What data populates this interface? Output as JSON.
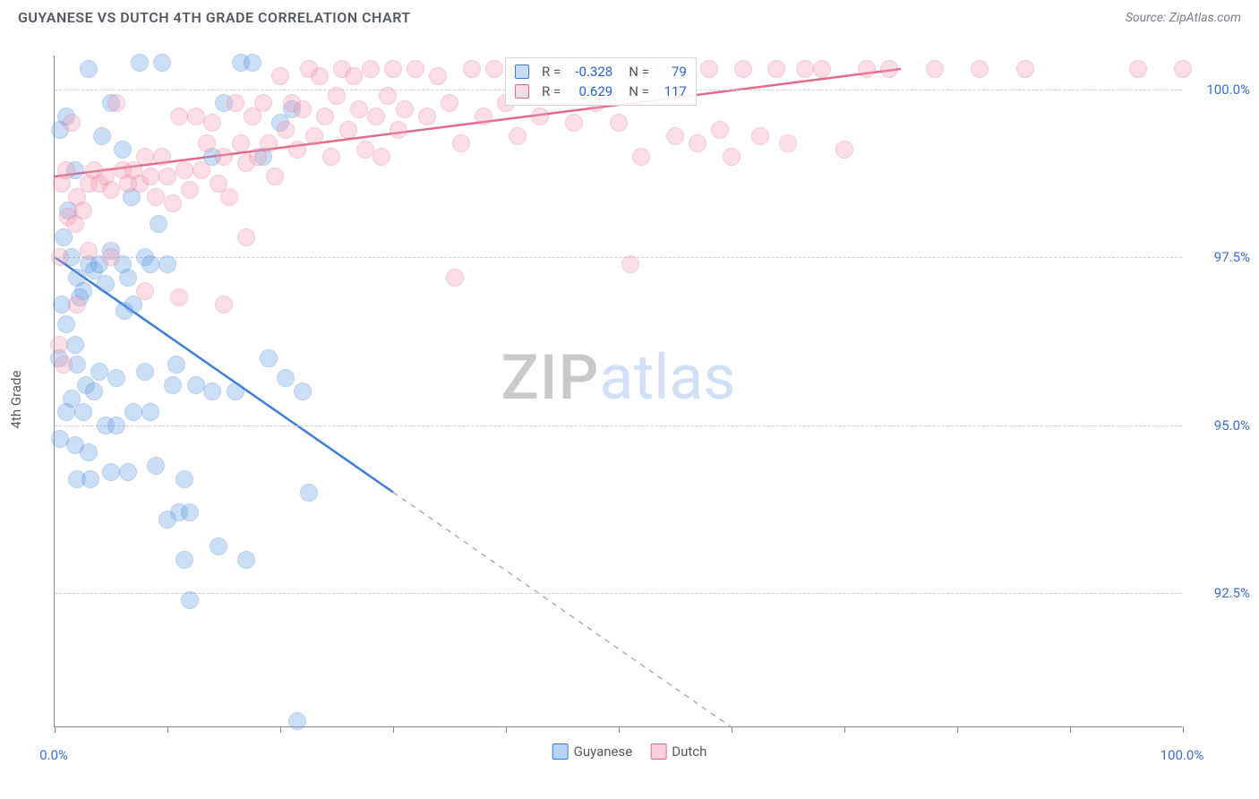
{
  "header": {
    "title": "GUYANESE VS DUTCH 4TH GRADE CORRELATION CHART",
    "source": "Source: ZipAtlas.com"
  },
  "watermark": {
    "part1": "ZIP",
    "part2": "atlas"
  },
  "yaxis": {
    "label": "4th Grade"
  },
  "chart": {
    "type": "scatter",
    "background_color": "#ffffff",
    "grid_color": "#cfcfcf",
    "xlim": [
      0,
      100
    ],
    "ylim": [
      90.5,
      100.5
    ],
    "x_ticks": [
      0,
      10,
      20,
      30,
      40,
      50,
      60,
      70,
      80,
      90,
      100
    ],
    "x_tick_labels_shown": {
      "0": "0.0%",
      "100": "100.0%"
    },
    "y_gridlines": [
      92.5,
      95.0,
      97.5,
      100.0
    ],
    "y_tick_labels": {
      "92.5": "92.5%",
      "95.0": "95.0%",
      "97.5": "97.5%",
      "100.0": "100.0%"
    },
    "marker_radius": 10,
    "marker_opacity": 0.35,
    "marker_border_opacity": 0.85,
    "line_width": 2.5,
    "series": [
      {
        "name": "Guyanese",
        "color_fill": "#6aa4e8",
        "color_stroke": "#3b7dd8",
        "R": "-0.328",
        "N": "79",
        "trend": {
          "x1": 0,
          "y1": 97.5,
          "x2": 30,
          "y2": 94.0,
          "dash_to_x": 60,
          "dash_to_y": 90.5
        },
        "points": [
          [
            0.5,
            99.4
          ],
          [
            1.0,
            99.6
          ],
          [
            1.2,
            98.2
          ],
          [
            1.8,
            98.8
          ],
          [
            0.8,
            97.8
          ],
          [
            1.5,
            97.5
          ],
          [
            2.0,
            97.2
          ],
          [
            2.5,
            97.0
          ],
          [
            0.6,
            96.8
          ],
          [
            1.0,
            96.5
          ],
          [
            1.8,
            96.2
          ],
          [
            0.4,
            96.0
          ],
          [
            2.2,
            96.9
          ],
          [
            3.0,
            97.4
          ],
          [
            3.5,
            97.3
          ],
          [
            4.0,
            97.4
          ],
          [
            4.5,
            97.1
          ],
          [
            5.0,
            97.6
          ],
          [
            6.0,
            97.4
          ],
          [
            6.5,
            97.2
          ],
          [
            7.5,
            100.4
          ],
          [
            8.0,
            97.5
          ],
          [
            9.5,
            100.4
          ],
          [
            3.0,
            100.3
          ],
          [
            4.2,
            99.3
          ],
          [
            5.0,
            99.8
          ],
          [
            6.0,
            99.1
          ],
          [
            6.8,
            98.4
          ],
          [
            8.5,
            97.4
          ],
          [
            2.0,
            95.9
          ],
          [
            2.8,
            95.6
          ],
          [
            3.5,
            95.5
          ],
          [
            4.0,
            95.8
          ],
          [
            5.5,
            95.7
          ],
          [
            6.2,
            96.7
          ],
          [
            7.0,
            96.8
          ],
          [
            8.0,
            95.8
          ],
          [
            9.2,
            98.0
          ],
          [
            10.0,
            97.4
          ],
          [
            10.8,
            95.9
          ],
          [
            1.0,
            95.2
          ],
          [
            1.5,
            95.4
          ],
          [
            2.5,
            95.2
          ],
          [
            0.5,
            94.8
          ],
          [
            1.8,
            94.7
          ],
          [
            3.0,
            94.6
          ],
          [
            4.5,
            95.0
          ],
          [
            5.5,
            95.0
          ],
          [
            7.0,
            95.2
          ],
          [
            8.5,
            95.2
          ],
          [
            2.0,
            94.2
          ],
          [
            3.2,
            94.2
          ],
          [
            5.0,
            94.3
          ],
          [
            6.5,
            94.3
          ],
          [
            9.0,
            94.4
          ],
          [
            10.5,
            95.6
          ],
          [
            11.5,
            94.2
          ],
          [
            12.5,
            95.6
          ],
          [
            14.0,
            95.5
          ],
          [
            16.0,
            95.5
          ],
          [
            10.0,
            93.6
          ],
          [
            11.0,
            93.7
          ],
          [
            12.0,
            93.7
          ],
          [
            14.0,
            99.0
          ],
          [
            15.0,
            99.8
          ],
          [
            16.5,
            100.4
          ],
          [
            17.5,
            100.4
          ],
          [
            18.5,
            99.0
          ],
          [
            20.0,
            99.5
          ],
          [
            19.0,
            96.0
          ],
          [
            20.5,
            95.7
          ],
          [
            21.0,
            99.7
          ],
          [
            22.0,
            95.5
          ],
          [
            22.5,
            94.0
          ],
          [
            12.0,
            92.4
          ],
          [
            11.5,
            93.0
          ],
          [
            14.5,
            93.2
          ],
          [
            17.0,
            93.0
          ],
          [
            21.5,
            90.6
          ]
        ]
      },
      {
        "name": "Dutch",
        "color_fill": "#f29fb6",
        "color_stroke": "#e46a8c",
        "R": "0.629",
        "N": "117",
        "trend": {
          "x1": 0,
          "y1": 98.7,
          "x2": 75,
          "y2": 100.3
        },
        "points": [
          [
            0.5,
            97.5
          ],
          [
            0.8,
            95.9
          ],
          [
            0.4,
            96.2
          ],
          [
            1.2,
            98.1
          ],
          [
            1.8,
            98.0
          ],
          [
            2.0,
            98.4
          ],
          [
            2.5,
            98.2
          ],
          [
            0.6,
            98.6
          ],
          [
            1.0,
            98.8
          ],
          [
            1.5,
            99.5
          ],
          [
            3.0,
            98.6
          ],
          [
            3.5,
            98.8
          ],
          [
            4.0,
            98.6
          ],
          [
            4.5,
            98.7
          ],
          [
            5.0,
            98.5
          ],
          [
            5.5,
            99.8
          ],
          [
            6.0,
            98.8
          ],
          [
            6.5,
            98.6
          ],
          [
            7.0,
            98.8
          ],
          [
            7.5,
            98.6
          ],
          [
            8.0,
            99.0
          ],
          [
            8.5,
            98.7
          ],
          [
            9.0,
            98.4
          ],
          [
            9.5,
            99.0
          ],
          [
            10.0,
            98.7
          ],
          [
            10.5,
            98.3
          ],
          [
            11.0,
            99.6
          ],
          [
            11.5,
            98.8
          ],
          [
            12.0,
            98.5
          ],
          [
            12.5,
            99.6
          ],
          [
            13.0,
            98.8
          ],
          [
            13.5,
            99.2
          ],
          [
            14.0,
            99.5
          ],
          [
            14.5,
            98.6
          ],
          [
            15.0,
            99.0
          ],
          [
            15.5,
            98.4
          ],
          [
            16.0,
            99.8
          ],
          [
            16.5,
            99.2
          ],
          [
            17.0,
            98.9
          ],
          [
            17.5,
            99.6
          ],
          [
            18.0,
            99.0
          ],
          [
            18.5,
            99.8
          ],
          [
            19.0,
            99.2
          ],
          [
            19.5,
            98.7
          ],
          [
            20.0,
            100.2
          ],
          [
            20.5,
            99.4
          ],
          [
            21.0,
            99.8
          ],
          [
            21.5,
            99.1
          ],
          [
            22.0,
            99.7
          ],
          [
            22.5,
            100.3
          ],
          [
            23.0,
            99.3
          ],
          [
            23.5,
            100.2
          ],
          [
            24.0,
            99.6
          ],
          [
            24.5,
            99.0
          ],
          [
            25.0,
            99.9
          ],
          [
            25.5,
            100.3
          ],
          [
            26.0,
            99.4
          ],
          [
            26.5,
            100.2
          ],
          [
            27.0,
            99.7
          ],
          [
            27.5,
            99.1
          ],
          [
            28.0,
            100.3
          ],
          [
            28.5,
            99.6
          ],
          [
            29.0,
            99.0
          ],
          [
            29.5,
            99.9
          ],
          [
            30.0,
            100.3
          ],
          [
            30.5,
            99.4
          ],
          [
            31.0,
            99.7
          ],
          [
            32.0,
            100.3
          ],
          [
            33.0,
            99.6
          ],
          [
            34.0,
            100.2
          ],
          [
            35.0,
            99.8
          ],
          [
            35.5,
            97.2
          ],
          [
            36.0,
            99.2
          ],
          [
            37.0,
            100.3
          ],
          [
            38.0,
            99.6
          ],
          [
            39.0,
            100.3
          ],
          [
            40.0,
            99.8
          ],
          [
            41.0,
            99.3
          ],
          [
            42.0,
            100.3
          ],
          [
            43.0,
            99.6
          ],
          [
            44.0,
            99.9
          ],
          [
            45.0,
            100.3
          ],
          [
            46.0,
            99.5
          ],
          [
            47.0,
            100.2
          ],
          [
            48.0,
            99.8
          ],
          [
            2.0,
            96.8
          ],
          [
            5.0,
            97.5
          ],
          [
            8.0,
            97.0
          ],
          [
            11.0,
            96.9
          ],
          [
            15.0,
            96.8
          ],
          [
            17.0,
            97.8
          ],
          [
            49.0,
            100.3
          ],
          [
            50.0,
            99.5
          ],
          [
            51.0,
            97.4
          ],
          [
            52.0,
            99.0
          ],
          [
            54.0,
            100.3
          ],
          [
            55.0,
            99.3
          ],
          [
            56.0,
            99.9
          ],
          [
            57.0,
            99.2
          ],
          [
            58.0,
            100.3
          ],
          [
            59.0,
            99.4
          ],
          [
            60.0,
            99.0
          ],
          [
            61.0,
            100.3
          ],
          [
            62.5,
            99.3
          ],
          [
            64.0,
            100.3
          ],
          [
            65.0,
            99.2
          ],
          [
            66.5,
            100.3
          ],
          [
            68.0,
            100.3
          ],
          [
            70.0,
            99.1
          ],
          [
            72.0,
            100.3
          ],
          [
            74.0,
            100.3
          ],
          [
            78.0,
            100.3
          ],
          [
            82.0,
            100.3
          ],
          [
            86.0,
            100.3
          ],
          [
            96.0,
            100.3
          ],
          [
            100.0,
            100.3
          ],
          [
            3.0,
            97.6
          ]
        ]
      }
    ]
  },
  "legend": {
    "items": [
      {
        "label": "Guyanese",
        "fill": "#b7d3f5",
        "stroke": "#3b7dd8"
      },
      {
        "label": "Dutch",
        "fill": "#f9cedb",
        "stroke": "#e46a8c"
      }
    ]
  }
}
